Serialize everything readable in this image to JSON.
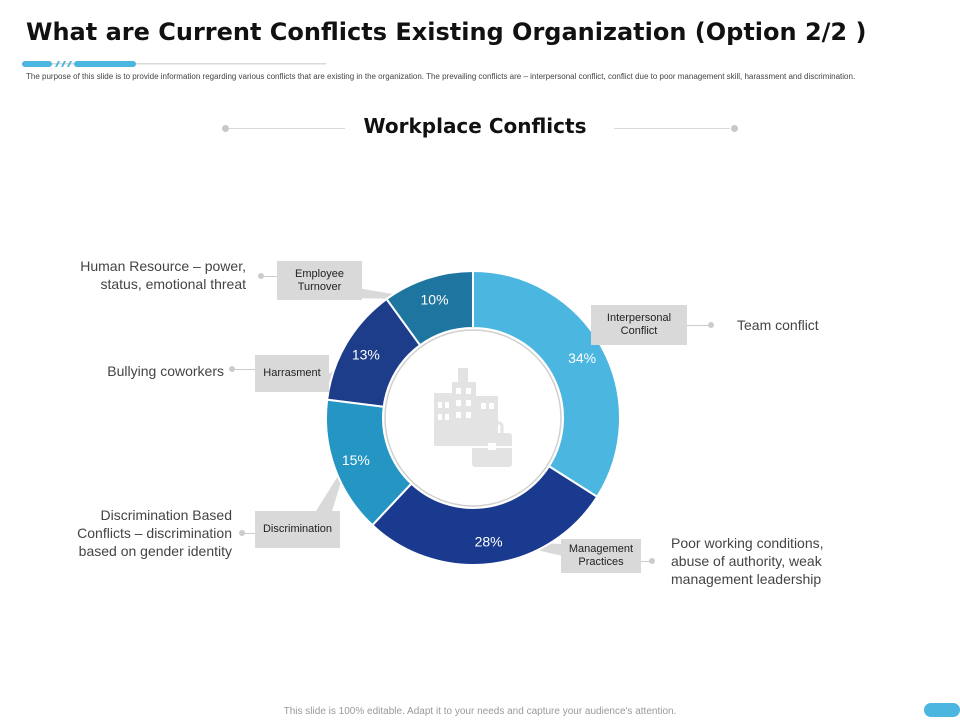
{
  "slide": {
    "title": "What are Current Conflicts Existing Organization (Option 2/2 )",
    "intro": "The purpose of this slide is to provide information regarding various conflicts that are existing in the organization. The prevailing conflicts are – interpersonal conflict, conflict due to poor management skill, harassment and discrimination.",
    "footer": "This slide is 100% editable. Adapt it to your needs and capture your audience's attention."
  },
  "colors": {
    "accent": "#4bb6e0",
    "accent_dark": "#1a3a8f",
    "tag_bg": "#d9d9d9"
  },
  "center_icon": "office-building-briefcase-icon",
  "chart_data": {
    "type": "pie",
    "variant": "donut",
    "title": "Workplace Conflicts",
    "unit": "%",
    "slices": [
      {
        "category": "Interpersonal Conflict",
        "value": 34,
        "label": "34%",
        "color": "#4bb6e0",
        "description": "Team conflict"
      },
      {
        "category": "Management Practices",
        "value": 28,
        "label": "28%",
        "color": "#1a3a8f",
        "description": "Poor working conditions, abuse of authority, weak management leadership"
      },
      {
        "category": "Discrimination",
        "value": 15,
        "label": "15%",
        "color": "#2596c3",
        "description": "Discrimination Based Conflicts – discrimination based on gender identity"
      },
      {
        "category": "Harrasment",
        "value": 13,
        "label": "13%",
        "color": "#1d3c8a",
        "description": "Bullying coworkers"
      },
      {
        "category": "Employee Turnover",
        "value": 10,
        "label": "10%",
        "color": "#1e76a0",
        "description": "Human Resource – power, status, emotional threat"
      }
    ]
  }
}
